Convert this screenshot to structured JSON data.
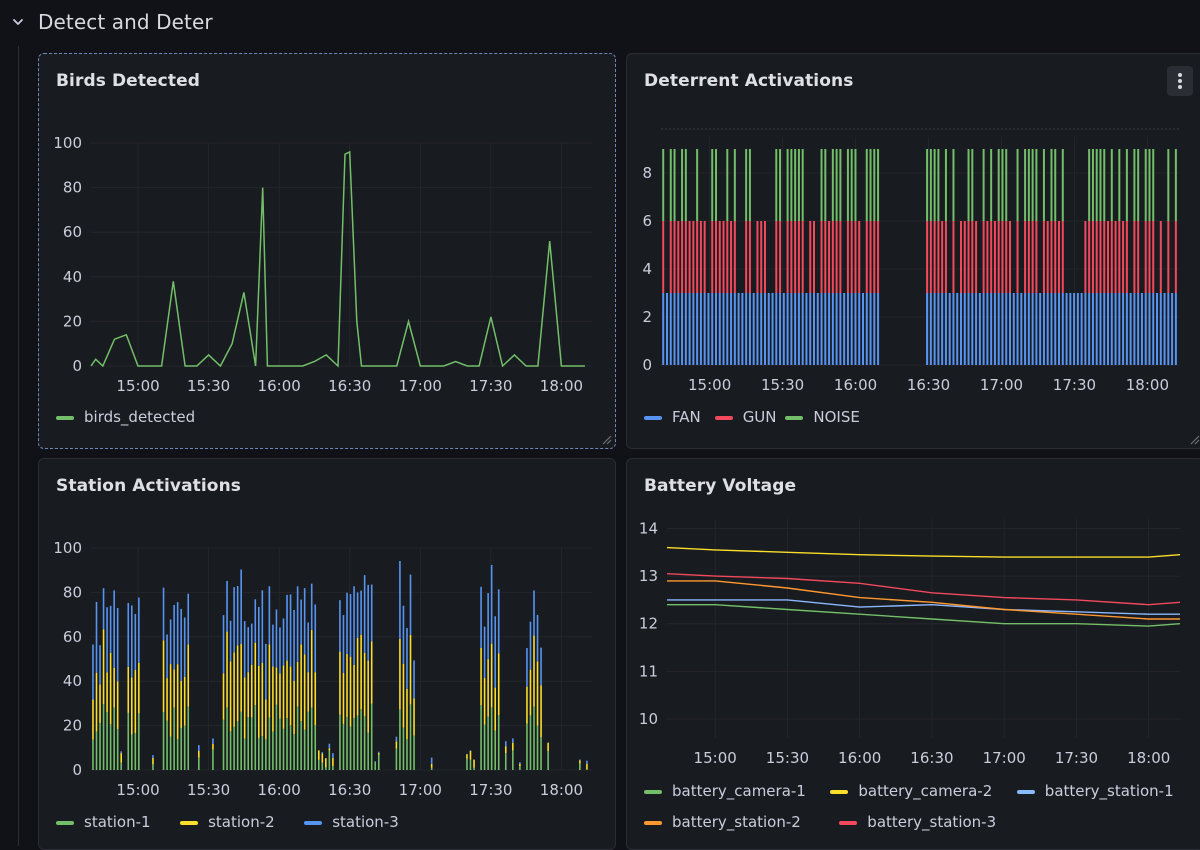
{
  "section": {
    "title": "Detect and Deter",
    "icon": "chevron-down-icon"
  },
  "panels": {
    "birds": {
      "title": "Birds Detected",
      "y_ticks": [
        "0",
        "20",
        "40",
        "60",
        "80",
        "100"
      ],
      "x_ticks": [
        "15:00",
        "15:30",
        "16:00",
        "16:30",
        "17:00",
        "17:30",
        "18:00"
      ],
      "legend": [
        {
          "label": "birds_detected",
          "color": "#73bf69"
        }
      ]
    },
    "deterrent": {
      "title": "Deterrent Activations",
      "menu_icon": "kebab-menu-icon",
      "y_ticks": [
        "0",
        "2",
        "4",
        "6",
        "8"
      ],
      "x_ticks": [
        "15:00",
        "15:30",
        "16:00",
        "16:30",
        "17:00",
        "17:30",
        "18:00"
      ],
      "legend": [
        {
          "label": "FAN",
          "color": "#5794f2"
        },
        {
          "label": "GUN",
          "color": "#f2495c"
        },
        {
          "label": "NOISE",
          "color": "#73bf69"
        }
      ]
    },
    "stations": {
      "title": "Station Activations",
      "y_ticks": [
        "0",
        "20",
        "40",
        "60",
        "80",
        "100"
      ],
      "x_ticks": [
        "15:00",
        "15:30",
        "16:00",
        "16:30",
        "17:00",
        "17:30",
        "18:00"
      ],
      "legend": [
        {
          "label": "station-1",
          "color": "#73bf69"
        },
        {
          "label": "station-2",
          "color": "#fade2a"
        },
        {
          "label": "station-3",
          "color": "#5794f2"
        }
      ]
    },
    "battery": {
      "title": "Battery Voltage",
      "y_ticks": [
        "10",
        "11",
        "12",
        "13",
        "14"
      ],
      "x_ticks": [
        "15:00",
        "15:30",
        "16:00",
        "16:30",
        "17:00",
        "17:30",
        "18:00"
      ],
      "legend": [
        {
          "label": "battery_camera-1",
          "color": "#73bf69"
        },
        {
          "label": "battery_camera-2",
          "color": "#fade2a"
        },
        {
          "label": "battery_station-1",
          "color": "#8ab8ff"
        },
        {
          "label": "battery_station-2",
          "color": "#ff9830"
        },
        {
          "label": "battery_station-3",
          "color": "#f2495c"
        }
      ]
    }
  },
  "chart_data": [
    {
      "type": "line",
      "x": [
        "14:40",
        "14:42",
        "14:45",
        "14:50",
        "14:55",
        "15:00",
        "15:05",
        "15:10",
        "15:15",
        "15:20",
        "15:25",
        "15:30",
        "15:35",
        "15:40",
        "15:45",
        "15:50",
        "15:53",
        "15:55",
        "15:58",
        "16:00",
        "16:05",
        "16:10",
        "16:15",
        "16:20",
        "16:25",
        "16:28",
        "16:30",
        "16:33",
        "16:35",
        "16:40",
        "16:45",
        "16:50",
        "16:55",
        "17:00",
        "17:05",
        "17:10",
        "17:15",
        "17:20",
        "17:25",
        "17:30",
        "17:35",
        "17:40",
        "17:45",
        "17:50",
        "17:55",
        "18:00",
        "18:05",
        "18:10"
      ],
      "series": [
        {
          "name": "birds_detected",
          "values": [
            0,
            3,
            0,
            12,
            14,
            0,
            0,
            0,
            38,
            0,
            0,
            5,
            0,
            10,
            33,
            0,
            80,
            0,
            0,
            0,
            0,
            0,
            2,
            5,
            0,
            95,
            96,
            20,
            0,
            0,
            0,
            0,
            20,
            0,
            0,
            0,
            2,
            0,
            0,
            22,
            0,
            5,
            0,
            0,
            56,
            0,
            0,
            0
          ]
        }
      ],
      "ylim": [
        0,
        100
      ],
      "xlim": [
        "14:40",
        "18:13"
      ]
    },
    {
      "type": "bar",
      "stacked": true,
      "series": [
        {
          "name": "FAN",
          "value_when_active": 3
        },
        {
          "name": "GUN",
          "value_when_active": 3
        },
        {
          "name": "NOISE",
          "value_when_active": 3
        }
      ],
      "ylim": [
        0,
        9
      ],
      "xlim": [
        "14:40",
        "18:13"
      ],
      "gap": [
        "16:10",
        "16:28"
      ]
    },
    {
      "type": "bar",
      "stacked": true,
      "series": [
        {
          "name": "station-1",
          "typical": 25
        },
        {
          "name": "station-2",
          "typical": 30
        },
        {
          "name": "station-3",
          "typical": 30
        }
      ],
      "active_windows": [
        [
          "14:40",
          "14:52"
        ],
        [
          "14:55",
          "15:00"
        ],
        [
          "15:10",
          "15:22"
        ],
        [
          "15:35",
          "16:15"
        ],
        [
          "16:25",
          "16:40"
        ],
        [
          "16:50",
          "16:58"
        ],
        [
          "17:25",
          "17:33"
        ],
        [
          "17:45",
          "17:52"
        ]
      ],
      "ylim": [
        0,
        100
      ],
      "xlim": [
        "14:40",
        "18:13"
      ]
    },
    {
      "type": "line",
      "x": [
        "14:40",
        "15:00",
        "15:30",
        "16:00",
        "16:30",
        "17:00",
        "17:30",
        "18:00",
        "18:13"
      ],
      "series": [
        {
          "name": "battery_camera-1",
          "values": [
            12.4,
            12.4,
            12.3,
            12.2,
            12.1,
            12.0,
            12.0,
            11.95,
            12.0
          ]
        },
        {
          "name": "battery_camera-2",
          "values": [
            13.6,
            13.55,
            13.5,
            13.45,
            13.42,
            13.4,
            13.4,
            13.4,
            13.45
          ]
        },
        {
          "name": "battery_station-1",
          "values": [
            12.5,
            12.5,
            12.5,
            12.35,
            12.4,
            12.3,
            12.25,
            12.2,
            12.2
          ]
        },
        {
          "name": "battery_station-2",
          "values": [
            12.9,
            12.9,
            12.75,
            12.55,
            12.45,
            12.3,
            12.2,
            12.1,
            12.1
          ]
        },
        {
          "name": "battery_station-3",
          "values": [
            13.05,
            13.0,
            12.95,
            12.85,
            12.65,
            12.55,
            12.5,
            12.4,
            12.45
          ]
        }
      ],
      "ylim": [
        9.6,
        14.2
      ],
      "xlim": [
        "14:40",
        "18:13"
      ]
    }
  ]
}
